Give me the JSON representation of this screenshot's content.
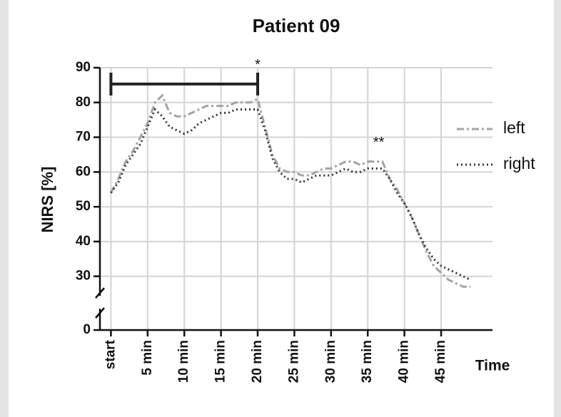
{
  "chart_data": {
    "type": "line",
    "title": "Patient 09",
    "y_label": "NIRS [%]",
    "x_label": "Time",
    "x": [
      0,
      1,
      2,
      3,
      4,
      5,
      6,
      7,
      8,
      9,
      10,
      11,
      12,
      13,
      14,
      15,
      16,
      17,
      18,
      19,
      20,
      21,
      22,
      23,
      24,
      25,
      26,
      27,
      28,
      29,
      30,
      31,
      32,
      33,
      34,
      35,
      36,
      37,
      38,
      39,
      40,
      41,
      42,
      43,
      44,
      45,
      46,
      47,
      48,
      49
    ],
    "series": [
      {
        "name": "left",
        "color": "#a3a3a3",
        "dash": "10 4 3 4",
        "values": [
          54,
          58,
          63,
          66,
          70,
          74,
          80,
          82,
          77,
          76,
          76,
          77,
          78,
          79,
          79,
          79,
          79,
          80,
          80,
          80,
          81,
          73,
          65,
          61,
          60,
          60,
          59,
          59,
          60,
          61,
          61,
          62,
          63,
          63,
          62,
          63,
          63,
          63,
          58,
          55,
          51,
          47,
          42,
          37,
          33,
          31,
          29,
          28,
          27,
          27
        ]
      },
      {
        "name": "right",
        "color": "#333333",
        "dash": "2 4",
        "values": [
          54,
          57,
          62,
          65,
          68,
          73,
          78,
          76,
          73,
          72,
          71,
          72,
          74,
          75,
          76,
          77,
          77,
          78,
          78,
          78,
          78,
          72,
          64,
          60,
          58,
          58,
          57,
          58,
          59,
          59,
          59,
          60,
          61,
          60,
          60,
          61,
          61,
          61,
          58,
          54,
          51,
          47,
          42,
          38,
          35,
          33,
          32,
          31,
          30,
          29
        ]
      }
    ],
    "xlim": [
      -1.5,
      52
    ],
    "xticks": [
      {
        "value": 0,
        "label": "start"
      },
      {
        "value": 5,
        "label": "5 min"
      },
      {
        "value": 10,
        "label": "10 min"
      },
      {
        "value": 15,
        "label": "15 min"
      },
      {
        "value": 20,
        "label": "20 min"
      },
      {
        "value": 25,
        "label": "25 min"
      },
      {
        "value": 30,
        "label": "30 min"
      },
      {
        "value": 35,
        "label": "35 min"
      },
      {
        "value": 40,
        "label": "40 min"
      },
      {
        "value": 45,
        "label": "45 min"
      }
    ],
    "ylim": [
      0,
      90
    ],
    "y_break": [
      0,
      25
    ],
    "yticks": [
      0,
      30,
      40,
      50,
      60,
      70,
      80,
      90
    ],
    "grid": true,
    "legend": "right",
    "annotations": [
      {
        "type": "bracket",
        "x": [
          0,
          20
        ],
        "y": 85.3,
        "label": "*"
      },
      {
        "type": "text",
        "x": 36.5,
        "y": 68.3,
        "label": "**"
      }
    ]
  }
}
